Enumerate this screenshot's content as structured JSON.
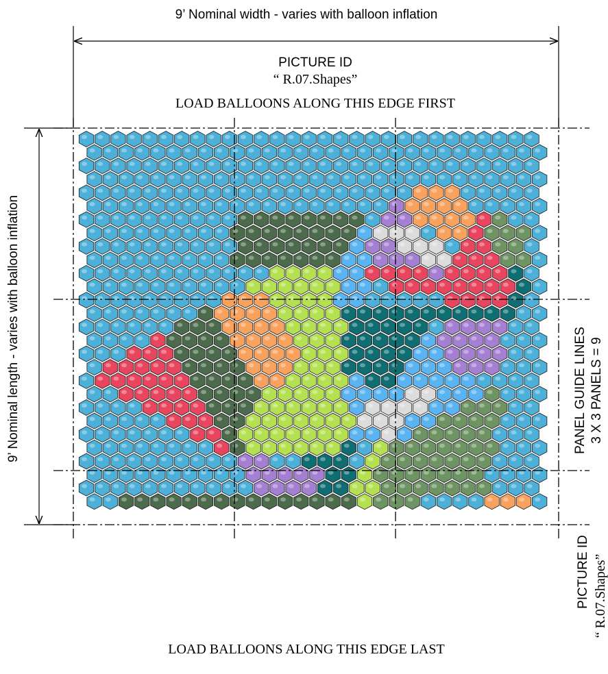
{
  "header": {
    "width_note": "9’  Nominal width - varies with balloon inflation",
    "picture_id": "PICTURE ID",
    "picture_name": "“ R.07.Shapes”",
    "top_edge": "LOAD  BALLOONS  ALONG  THIS  EDGE  FIRST"
  },
  "side": {
    "length_note": "9’  Nominal length - varies with balloon inflation",
    "panel_title": "PANEL GUIDE LINES",
    "panel_count": "3 X 3 PANELS = 9",
    "picture_id": "PICTURE  ID",
    "picture_name": "“ R.07.Shapes”"
  },
  "footer": {
    "bottom_edge": "LOAD  BALLOONS  ALONG  THIS  EDGE  LAST"
  }
}
